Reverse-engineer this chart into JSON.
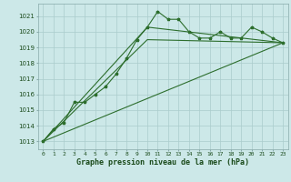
{
  "xlabel": "Graphe pression niveau de la mer (hPa)",
  "background_color": "#cce8e8",
  "plot_bg_color": "#cce8e8",
  "grid_color": "#aacccc",
  "line_color": "#2d6e2d",
  "x_values": [
    0,
    1,
    2,
    3,
    4,
    5,
    6,
    7,
    8,
    9,
    10,
    11,
    12,
    13,
    14,
    15,
    16,
    17,
    18,
    19,
    20,
    21,
    22,
    23
  ],
  "series1": [
    1013.0,
    1013.8,
    1014.2,
    1015.5,
    1015.5,
    1016.0,
    1016.5,
    1017.3,
    1018.3,
    1019.5,
    1020.3,
    1021.3,
    1020.8,
    1020.8,
    1020.0,
    1019.6,
    1019.6,
    1020.0,
    1019.6,
    1019.6,
    1020.3,
    1020.0,
    1019.6,
    1019.3
  ],
  "line1_x": [
    0,
    10,
    23
  ],
  "line1_y": [
    1013.0,
    1020.3,
    1019.3
  ],
  "line2_x": [
    0,
    10,
    23
  ],
  "line2_y": [
    1013.0,
    1019.5,
    1019.3
  ],
  "line3_x": [
    0,
    23
  ],
  "line3_y": [
    1013.0,
    1019.3
  ],
  "ylim_min": 1012.5,
  "ylim_max": 1021.8,
  "yticks": [
    1013,
    1014,
    1015,
    1016,
    1017,
    1018,
    1019,
    1020,
    1021
  ],
  "xticks": [
    0,
    1,
    2,
    3,
    4,
    5,
    6,
    7,
    8,
    9,
    10,
    11,
    12,
    13,
    14,
    15,
    16,
    17,
    18,
    19,
    20,
    21,
    22,
    23
  ],
  "marker_size": 2.5,
  "line_width": 0.8
}
